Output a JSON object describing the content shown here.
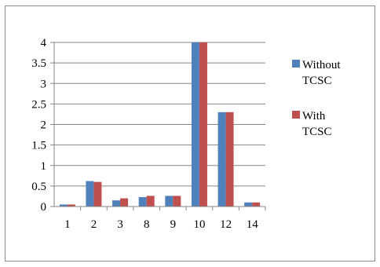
{
  "chart_data": {
    "type": "bar",
    "title": "",
    "xlabel": "",
    "ylabel": "",
    "categories": [
      "1",
      "2",
      "3",
      "8",
      "9",
      "10",
      "12",
      "14"
    ],
    "series": [
      {
        "name": "Without TCSC",
        "name_lines": [
          "Without",
          "TCSC"
        ],
        "color": "#4F81BD",
        "values": [
          0.05,
          0.62,
          0.15,
          0.23,
          0.26,
          4.0,
          2.3,
          0.1
        ]
      },
      {
        "name": "With TCSC",
        "name_lines": [
          "With",
          "TCSC"
        ],
        "color": "#C0504D",
        "values": [
          0.05,
          0.6,
          0.2,
          0.26,
          0.26,
          4.0,
          2.3,
          0.1
        ]
      }
    ],
    "ylim": [
      0,
      4
    ],
    "yticks": [
      "0",
      "0.5",
      "1",
      "1.5",
      "2",
      "2.5",
      "3",
      "3.5",
      "4"
    ],
    "grid": true,
    "legend": "right"
  }
}
